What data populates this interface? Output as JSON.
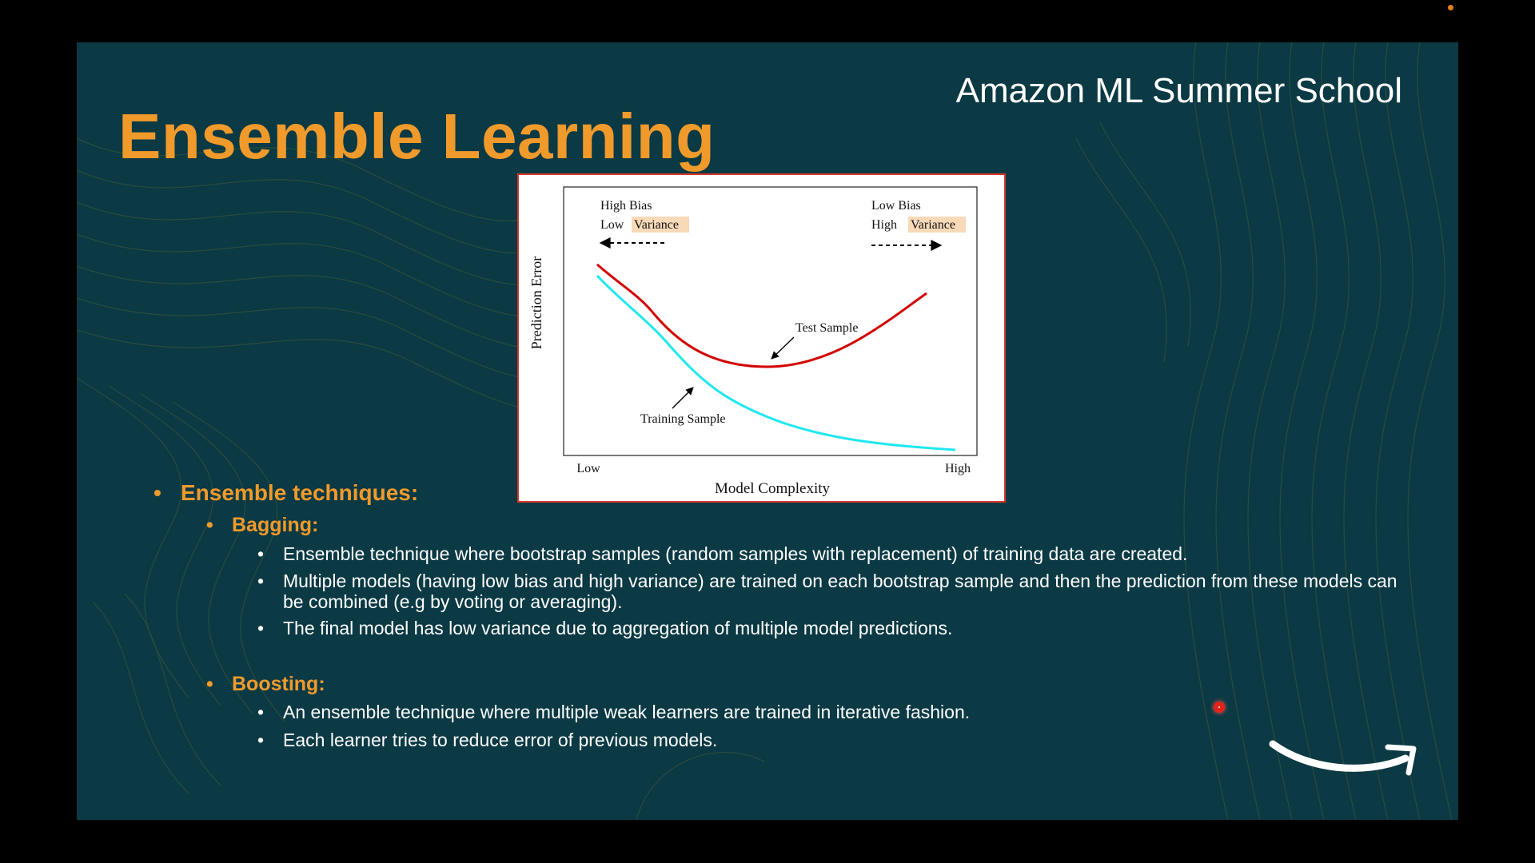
{
  "slide": {
    "brand": "Amazon ML Summer School",
    "title": "Ensemble Learning"
  },
  "figure": {
    "ylabel": "Prediction Error",
    "xlabel": "Model Complexity",
    "x_low": "Low",
    "x_high": "High",
    "left_label_line1": "High Bias",
    "left_label_line2_prefix": "Low ",
    "left_label_line2_highlight": "Variance",
    "right_label_line1": "Low Bias",
    "right_label_line2_prefix": "High ",
    "right_label_line2_highlight": "Variance",
    "test_label": "Test Sample",
    "train_label": "Training Sample",
    "colors": {
      "test": "#d40000",
      "train": "#1fe8f0",
      "highlight": "#f8d9b8"
    }
  },
  "content": {
    "heading": "Ensemble techniques:",
    "bagging": {
      "label": "Bagging:",
      "points": [
        "Ensemble technique where bootstrap samples (random samples with replacement) of training data are created.",
        "Multiple models (having low bias and high variance) are trained on each bootstrap sample and then the prediction from these models can be combined (e.g by voting or averaging).",
        "The final model has low variance due to aggregation of multiple model predictions."
      ]
    },
    "boosting": {
      "label": "Boosting:",
      "points": [
        "An ensemble technique where multiple weak learners are trained in iterative fashion.",
        "Each learner tries to reduce error of previous models."
      ]
    }
  },
  "colors": {
    "background": "#0b3944",
    "accent": "#f09a2b",
    "text": "#ffffff"
  },
  "icons": {
    "logo": "amazon-smile-logo",
    "pointer": "laser-pointer-icon"
  }
}
